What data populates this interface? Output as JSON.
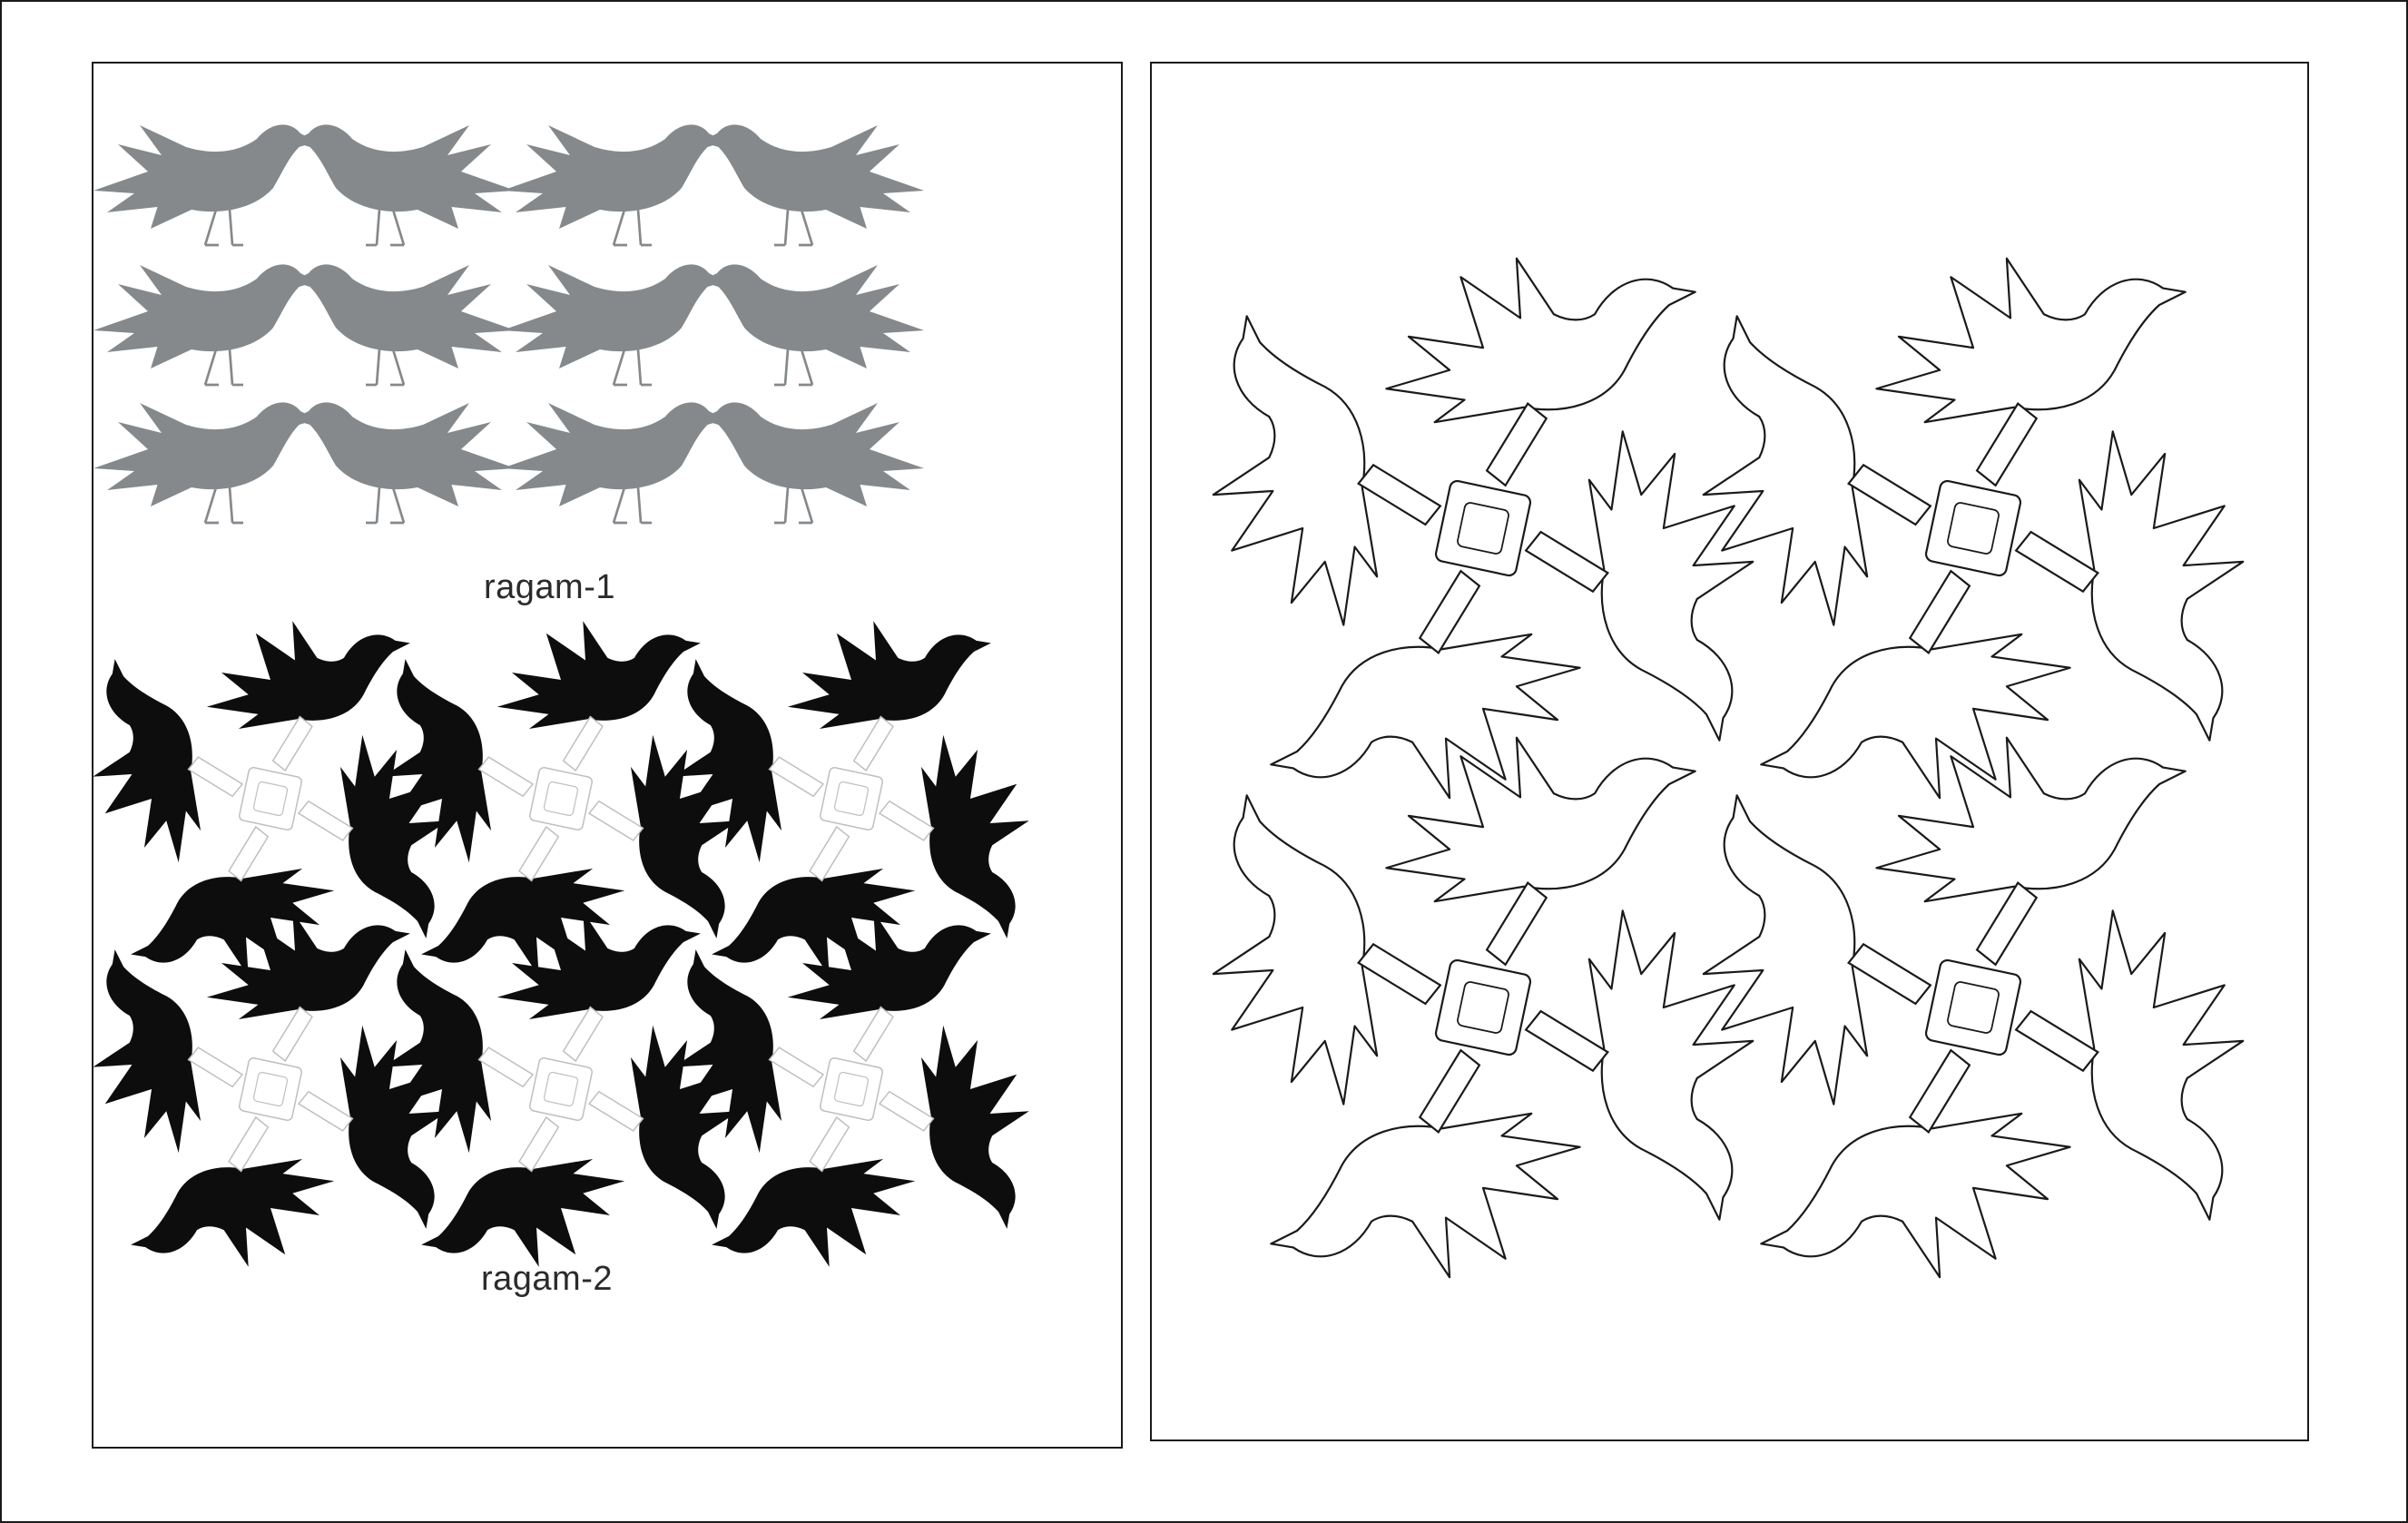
{
  "labels": {
    "ragam_1": "ragam-1",
    "ragam_2": "ragam-2"
  },
  "colors": {
    "background": "#ffffff",
    "border": "#1a1a1a",
    "ragam_1_fill": "#85898c",
    "ragam_2_fill": "#0d0d0d",
    "ragam_2_knot": "#ffffff",
    "outline_stroke": "#1a1a1a",
    "label_text": "#2b2b2b"
  },
  "patterns": {
    "ragam_1": {
      "motif": "bird-icon",
      "rows": 3,
      "columns": 4
    },
    "ragam_2": {
      "motif": "bird-pinwheel",
      "rows": 2,
      "columns": 3
    },
    "outline": {
      "motif": "bird-pinwheel",
      "rows": 2,
      "columns": 2
    }
  }
}
